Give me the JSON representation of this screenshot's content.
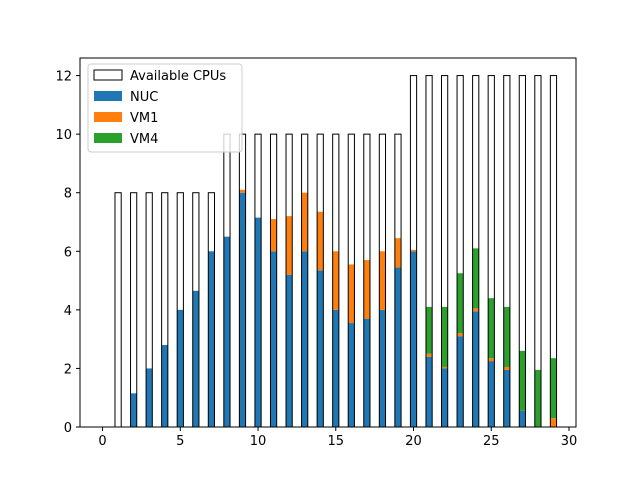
{
  "chart_data": {
    "type": "bar",
    "stacked": true,
    "x": [
      0,
      1,
      2,
      3,
      4,
      5,
      6,
      7,
      8,
      9,
      10,
      11,
      12,
      13,
      14,
      15,
      16,
      17,
      18,
      19,
      20,
      21,
      22,
      23,
      24,
      25,
      26,
      27,
      28,
      29
    ],
    "xlim": [
      -1.45,
      30.45
    ],
    "ylim": [
      0,
      12.6
    ],
    "xticks": [
      0,
      5,
      10,
      15,
      20,
      25,
      30
    ],
    "yticks": [
      0,
      2,
      4,
      6,
      8,
      10,
      12
    ],
    "grid": false,
    "legend_position": "upper left",
    "available": {
      "name": "Available CPUs",
      "values": [
        0,
        8,
        8,
        8,
        8,
        8,
        8,
        8,
        10,
        10,
        10,
        10,
        10,
        10,
        10,
        10,
        10,
        10,
        10,
        10,
        12,
        12,
        12,
        12,
        12,
        12,
        12,
        12,
        12,
        12
      ]
    },
    "series": [
      {
        "name": "NUC",
        "color": "#1f77b4",
        "values": [
          0,
          0,
          1.15,
          2.0,
          2.8,
          4.0,
          4.65,
          6.0,
          6.5,
          8.0,
          7.15,
          6.0,
          5.2,
          6.0,
          5.35,
          4.0,
          3.55,
          3.7,
          4.0,
          5.45,
          6.0,
          2.4,
          2.0,
          3.1,
          3.95,
          2.25,
          1.95,
          0.55,
          0,
          0
        ]
      },
      {
        "name": "VM1",
        "color": "#ff7f0e",
        "values": [
          0,
          0,
          0,
          0,
          0,
          0,
          0,
          0,
          0,
          0.1,
          0,
          1.1,
          2.0,
          2.0,
          2.0,
          2.0,
          2.0,
          2.0,
          2.0,
          1.0,
          0.05,
          0.1,
          0.05,
          0.1,
          0.1,
          0.1,
          0.1,
          0,
          0,
          0.3
        ]
      },
      {
        "name": "VM4",
        "color": "#2ca02c",
        "values": [
          0,
          0,
          0,
          0,
          0,
          0,
          0,
          0,
          0,
          0,
          0,
          0,
          0,
          0,
          0,
          0,
          0,
          0,
          0,
          0,
          0,
          1.6,
          2.05,
          2.05,
          2.05,
          2.05,
          2.05,
          2.05,
          1.95,
          2.05
        ]
      }
    ]
  }
}
